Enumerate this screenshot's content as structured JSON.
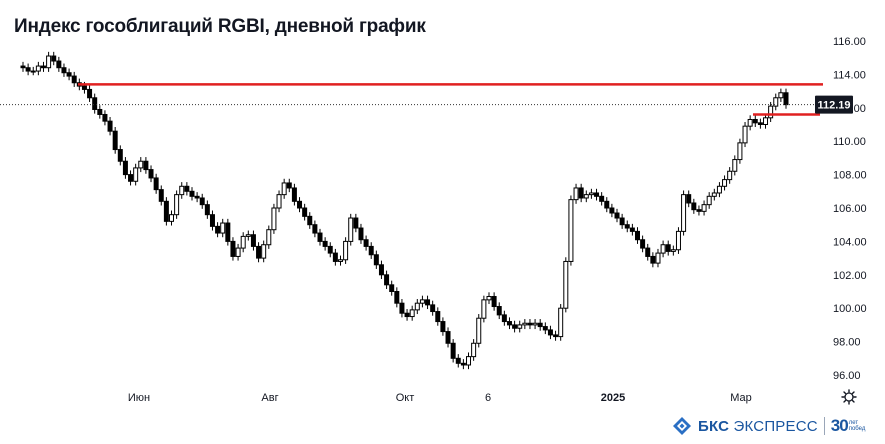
{
  "chart_data": {
    "type": "candlestick",
    "title": "Индекс гособлигаций RGBI, дневной график",
    "ylim": [
      95.5,
      117
    ],
    "yticks": [
      "116.00",
      "114.00",
      "112.00",
      "110.00",
      "108.00",
      "106.00",
      "104.00",
      "102.00",
      "100.00",
      "98.00",
      "96.00"
    ],
    "xticks": [
      {
        "label": "Июн",
        "bold": false
      },
      {
        "label": "Авг",
        "bold": false
      },
      {
        "label": "Окт",
        "bold": false
      },
      {
        "label": "6",
        "bold": false
      },
      {
        "label": "2025",
        "bold": true
      },
      {
        "label": "Мар",
        "bold": false
      }
    ],
    "last_price": "112.19",
    "last_value": 112.19,
    "grid": false,
    "levels": [
      {
        "value": 113.4,
        "color": "#e02020"
      },
      {
        "value": 111.6,
        "color": "#e02020"
      }
    ],
    "close_series": [
      114.4,
      114.2,
      114.2,
      114.5,
      114.4,
      115.1,
      114.8,
      114.4,
      114.1,
      113.9,
      113.5,
      113.3,
      113.1,
      112.6,
      111.9,
      111.6,
      111.2,
      110.6,
      109.5,
      108.8,
      108.0,
      107.6,
      108.4,
      108.8,
      108.3,
      107.8,
      107.1,
      106.4,
      105.2,
      105.6,
      106.8,
      107.3,
      107.0,
      106.7,
      106.6,
      106.2,
      105.6,
      104.9,
      104.5,
      105.1,
      104.0,
      103.1,
      103.6,
      104.3,
      104.4,
      103.7,
      103.0,
      103.8,
      104.7,
      106.0,
      106.8,
      107.5,
      107.2,
      106.4,
      106.0,
      105.5,
      105.0,
      104.5,
      104.0,
      103.7,
      103.3,
      102.8,
      102.9,
      104.0,
      105.4,
      104.8,
      104.1,
      103.7,
      103.2,
      102.6,
      102.0,
      101.4,
      101.0,
      100.3,
      99.7,
      99.5,
      99.9,
      100.3,
      100.5,
      100.2,
      99.8,
      99.2,
      98.6,
      97.9,
      97.0,
      96.7,
      96.6,
      97.1,
      97.9,
      99.4,
      100.5,
      100.7,
      100.1,
      99.6,
      99.2,
      99.0,
      98.8,
      99.0,
      99.1,
      99.0,
      99.1,
      98.9,
      98.7,
      98.4,
      98.3,
      100.0,
      102.8,
      106.5,
      107.2,
      106.6,
      106.8,
      106.9,
      106.7,
      106.4,
      106.0,
      105.7,
      105.4,
      105.0,
      104.8,
      104.6,
      104.1,
      103.6,
      103.1,
      102.7,
      103.3,
      103.8,
      103.4,
      103.5,
      104.6,
      106.8,
      106.3,
      105.9,
      105.8,
      106.2,
      106.7,
      106.9,
      107.3,
      107.7,
      108.2,
      108.9,
      109.9,
      110.9,
      111.3,
      111.1,
      111.0,
      111.4,
      112.1,
      112.6,
      112.9,
      112.19
    ],
    "series": [
      {
        "values": "see close_series",
        "color": "#000000"
      }
    ]
  },
  "brand": {
    "name_bold": "БКС",
    "name_rest": " ЭКСПРЕСС",
    "anniv_number": "30",
    "anniv_sub": "лет побед"
  },
  "icons": {
    "settings": "gear-icon",
    "brand": "bks-logo-icon"
  },
  "colors": {
    "level": "#e02020",
    "candle": "#000000",
    "text": "#131722",
    "brand": "#1a56a0"
  }
}
